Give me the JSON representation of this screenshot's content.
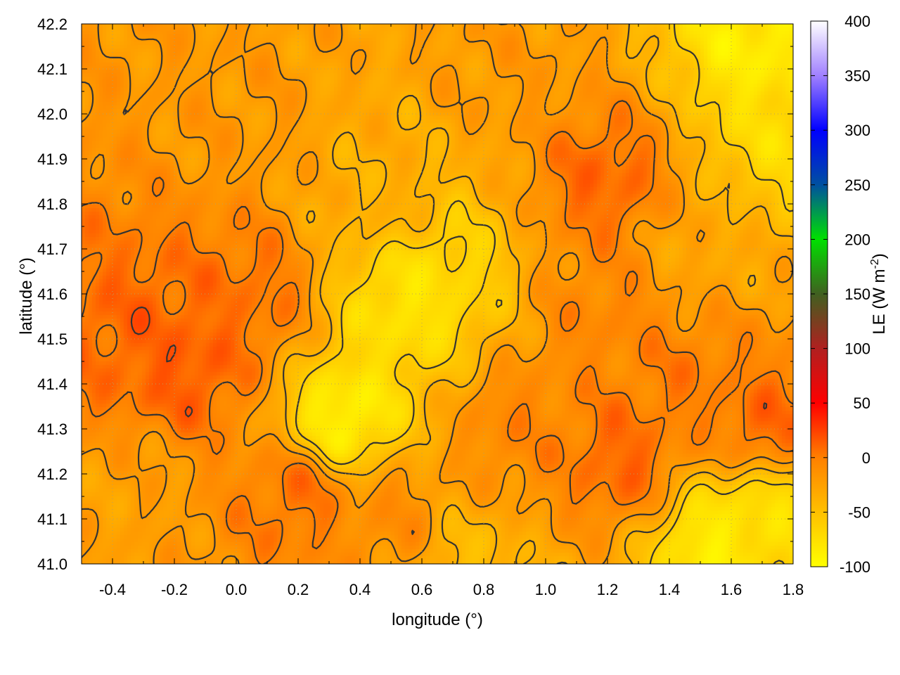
{
  "chart_data": {
    "type": "heatmap",
    "title": "",
    "xlabel": "longitude (°)",
    "ylabel": "latitude (°)",
    "colorbar_label": "LE (W m-2)",
    "colorbar_label_parts": [
      "LE (W m",
      "-2",
      ")"
    ],
    "xlim": [
      -0.5,
      1.8
    ],
    "ylim": [
      41.0,
      42.2
    ],
    "clim": [
      -100,
      400
    ],
    "x_ticks": [
      "-0.4",
      "-0.2",
      "0.0",
      "0.2",
      "0.4",
      "0.6",
      "0.8",
      "1.0",
      "1.2",
      "1.4",
      "1.6",
      "1.8"
    ],
    "x_tick_values": [
      -0.4,
      -0.2,
      0.0,
      0.2,
      0.4,
      0.6,
      0.8,
      1.0,
      1.2,
      1.4,
      1.6,
      1.8
    ],
    "y_ticks": [
      "41.0",
      "41.1",
      "41.2",
      "41.3",
      "41.4",
      "41.5",
      "41.6",
      "41.7",
      "41.8",
      "41.9",
      "42.0",
      "42.1",
      "42.2"
    ],
    "y_tick_values": [
      41.0,
      41.1,
      41.2,
      41.3,
      41.4,
      41.5,
      41.6,
      41.7,
      41.8,
      41.9,
      42.0,
      42.1,
      42.2
    ],
    "colorbar_ticks": [
      "-100",
      "-50",
      "0",
      "50",
      "100",
      "150",
      "200",
      "250",
      "300",
      "350",
      "400"
    ],
    "colorbar_tick_values": [
      -100,
      -50,
      0,
      50,
      100,
      150,
      200,
      250,
      300,
      350,
      400
    ],
    "colormap": [
      {
        "value": -100,
        "color": "#ffff00"
      },
      {
        "value": -50,
        "color": "#ffc000"
      },
      {
        "value": 0,
        "color": "#ff8000"
      },
      {
        "value": 50,
        "color": "#ff0000"
      },
      {
        "value": 100,
        "color": "#b02020"
      },
      {
        "value": 150,
        "color": "#406020"
      },
      {
        "value": 200,
        "color": "#00e000"
      },
      {
        "value": 250,
        "color": "#0050a0"
      },
      {
        "value": 300,
        "color": "#0000ff"
      },
      {
        "value": 350,
        "color": "#a080ff"
      },
      {
        "value": 400,
        "color": "#ffffff"
      }
    ],
    "contour_color": "#333333",
    "grid": true,
    "grid_color": "#b8a060",
    "grid_style": "dotted",
    "field_anchors": [
      {
        "lon": -0.3,
        "lat": 41.5,
        "value": 10
      },
      {
        "lon": -0.15,
        "lat": 41.45,
        "value": 15
      },
      {
        "lon": 0.05,
        "lat": 41.6,
        "value": 5
      },
      {
        "lon": 0.0,
        "lat": 42.0,
        "value": -20
      },
      {
        "lon": -0.35,
        "lat": 41.15,
        "value": -25
      },
      {
        "lon": 0.35,
        "lat": 41.32,
        "value": -90
      },
      {
        "lon": 0.55,
        "lat": 41.58,
        "value": -80
      },
      {
        "lon": 0.65,
        "lat": 41.65,
        "value": -70
      },
      {
        "lon": 0.5,
        "lat": 41.8,
        "value": -35
      },
      {
        "lon": 0.2,
        "lat": 41.15,
        "value": 5
      },
      {
        "lon": 0.5,
        "lat": 41.1,
        "value": -10
      },
      {
        "lon": 0.9,
        "lat": 41.3,
        "value": -5
      },
      {
        "lon": 1.2,
        "lat": 41.55,
        "value": -5
      },
      {
        "lon": 1.2,
        "lat": 41.85,
        "value": 10
      },
      {
        "lon": 1.45,
        "lat": 41.4,
        "value": 0
      },
      {
        "lon": 1.25,
        "lat": 41.23,
        "value": 10
      },
      {
        "lon": 1.55,
        "lat": 41.05,
        "value": -85
      },
      {
        "lon": 1.7,
        "lat": 41.12,
        "value": -75
      },
      {
        "lon": 1.7,
        "lat": 42.15,
        "value": -85
      },
      {
        "lon": 1.75,
        "lat": 41.95,
        "value": -70
      },
      {
        "lon": 0.9,
        "lat": 42.1,
        "value": -20
      },
      {
        "lon": 1.5,
        "lat": 41.7,
        "value": -30
      },
      {
        "lon": 0.75,
        "lat": 41.0,
        "value": -45
      },
      {
        "lon": 1.7,
        "lat": 41.3,
        "value": 10
      }
    ]
  }
}
